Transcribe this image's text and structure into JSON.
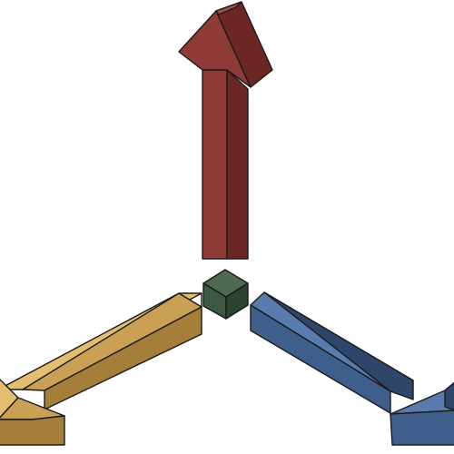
{
  "diagram": {
    "kind": "3d-coordinate-axes-icon",
    "background": "#ffffff",
    "outline_color": "#1a1a1a",
    "axes": [
      {
        "id": "vertical-axis",
        "direction": "up",
        "colors": {
          "front": "#8e3a37",
          "side": "#6c2725",
          "top": "#a44a46"
        }
      },
      {
        "id": "left-axis",
        "direction": "down-left",
        "colors": {
          "front": "#caa055",
          "side": "#a57e3a",
          "top": "#e3be6e"
        }
      },
      {
        "id": "right-axis",
        "direction": "down-right",
        "colors": {
          "front": "#3e5f8c",
          "side": "#2d4669",
          "top": "#5a7bad"
        }
      }
    ],
    "origin_cube": {
      "colors": {
        "top": "#4e6a52",
        "left": "#3e5943",
        "right": "#2b4431"
      }
    }
  }
}
